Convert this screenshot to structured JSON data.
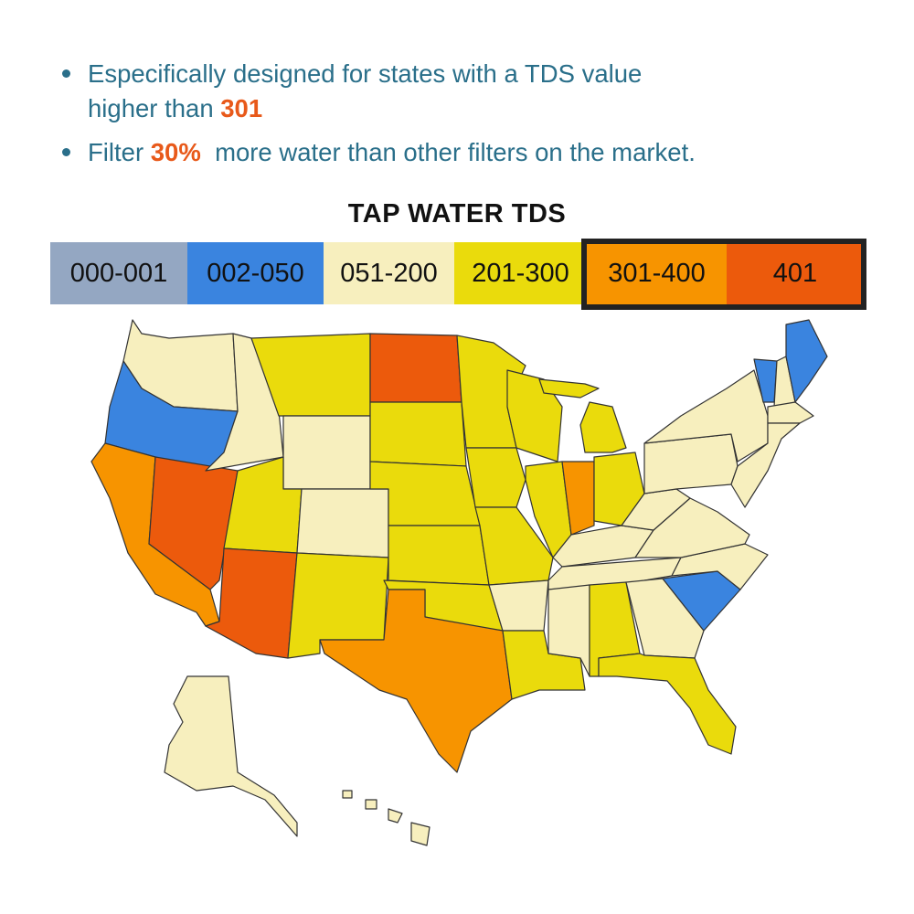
{
  "bullets": [
    {
      "pre": "Especifically designed for states with a TDS value",
      "line2_pre": "higher than ",
      "highlight": "301",
      "post": ""
    },
    {
      "pre": "Filter ",
      "highlight": "30%",
      "post": "  more water than other filters on the market."
    }
  ],
  "map": {
    "title": "TAP WATER TDS",
    "legend": [
      {
        "label": "000-001",
        "color": "#94a7c2"
      },
      {
        "label": "002-050",
        "color": "#3a84df"
      },
      {
        "label": "051-200",
        "color": "#f7efbe"
      },
      {
        "label": "201-300",
        "color": "#eadb0c"
      },
      {
        "label": "301-400",
        "color": "#f79400"
      },
      {
        "label": "401",
        "color": "#ec5a0c"
      }
    ],
    "highlight_frame_color": "#222222",
    "state_categories": {
      "washington": "051-200",
      "oregon": "002-050",
      "california": "301-400",
      "nevada": "401",
      "idaho": "051-200",
      "montana": "201-300",
      "wyoming": "051-200",
      "utah": "201-300",
      "arizona": "401",
      "colorado": "051-200",
      "new-mexico": "201-300",
      "north-dakota": "401",
      "south-dakota": "201-300",
      "nebraska": "201-300",
      "kansas": "201-300",
      "oklahoma": "201-300",
      "texas": "301-400",
      "minnesota": "201-300",
      "iowa": "201-300",
      "missouri": "201-300",
      "arkansas": "051-200",
      "louisiana": "201-300",
      "wisconsin": "201-300",
      "illinois": "201-300",
      "michigan": "201-300",
      "indiana": "301-400",
      "ohio": "201-300",
      "kentucky": "051-200",
      "tennessee": "051-200",
      "mississippi": "051-200",
      "alabama": "201-300",
      "georgia": "051-200",
      "florida": "201-300",
      "south-carolina": "002-050",
      "north-carolina": "051-200",
      "virginia": "051-200",
      "west-virginia": "051-200",
      "pennsylvania": "051-200",
      "new-york": "051-200",
      "vermont": "002-050",
      "new-hampshire": "051-200",
      "maine": "002-050",
      "massachusetts": "051-200",
      "northeast-small": "051-200",
      "alaska": "051-200",
      "hawaii": "051-200"
    }
  }
}
